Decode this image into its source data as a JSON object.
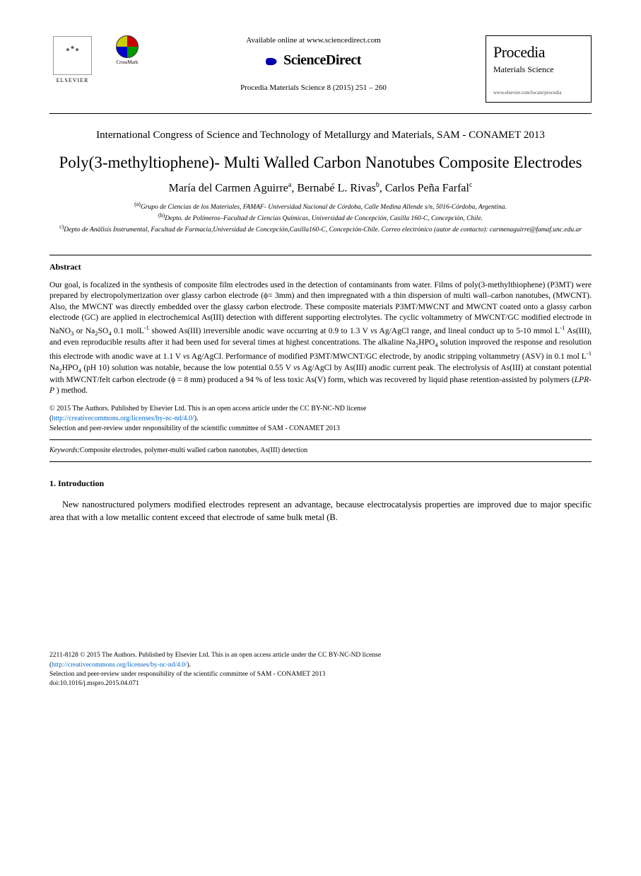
{
  "header": {
    "elsevier_label": "ELSEVIER",
    "crossmark_label": "CrossMark",
    "available_text": "Available online at www.sciencedirect.com",
    "sciencedirect": "ScienceDirect",
    "citation": "Procedia Materials Science 8 (2015) 251 – 260",
    "journal_name1": "Procedia",
    "journal_name2": "Materials Science",
    "journal_url": "www.elsevier.com/locate/procedia"
  },
  "congress": "International Congress of Science and Technology of Metallurgy and Materials, SAM - CONAMET 2013",
  "title": "Poly(3-methyltiophene)- Multi Walled Carbon Nanotubes Composite Electrodes",
  "authors_html": "María del Carmen Aguirre<sup>a</sup>, Bernabé L. Rivas<sup>b</sup>, Carlos Peña Farfal<sup>c</sup>",
  "affiliations": {
    "a": "Grupo de Ciencias de los Materiales, FAMAF- Universidad Nacional de Córdoba, Calle Medina Allende s/n, 5016-Córdoba, Argentina.",
    "b": "Depto. de Polímeros–Facultad de Ciencias Químicas, Universidad de Concepción, Casilla 160-C, Concepción, Chile.",
    "c": "Depto de Análisis Instrumental, Facultad de Farmacia,Universidad de Concepción,Casilla160-C, Concepción-Chile. Correo electrónico (autor de contacto): carmenaguirre@famaf.unc.edu.ar"
  },
  "abstract_heading": "Abstract",
  "abstract": "Our goal, is focalized in the synthesis of composite film electrodes used in the detection of contaminants from water. Films of poly(3-methylthiophene) (P3MT) were prepared by electropolymerization over glassy carbon electrode (ϕ= 3mm) and then impregnated with a thin dispersion of multi wall–carbon nanotubes, (MWCNT). Also, the MWCNT was directly embedded over the glassy carbon electrode. These composite materials P3MT/MWCNT and MWCNT coated onto a glassy carbon electrode (GC) are applied in electrochemical As(III) detection with different supporting electrolytes. The cyclic voltammetry of MWCNT/GC modified electrode in NaNO₃ or Na₂SO₄ 0.1 molL⁻¹ showed As(III) irreversible anodic wave occurring at 0.9 to 1.3 V vs Ag/AgCl range, and lineal conduct up to 5-10 mmol L⁻¹ As(III), and even reproducible results after it had been used for several times at highest concentrations. The alkaline Na₂HPO₄ solution improved the response and resolution this electrode with anodic wave at 1.1 V vs Ag/AgCl. Performance of modified P3MT/MWCNT/GC electrode, by anodic stripping voltammetry (ASV) in 0.1 mol L⁻¹ Na₂HPO₄ (pH 10) solution was notable, because the low potential 0.55 V vs Ag/AgCl by As(III) anodic current peak. The electrolysis of As(III) at constant potential with MWCNT/felt carbon electrode (ϕ = 8 mm) produced a 94 % of less toxic As(V) form, which was recovered by liquid phase retention-assisted by polymers (LPR-P ) method.",
  "copyright": {
    "line1": "© 2015 The Authors. Published by Elsevier Ltd. This is an open access article under the CC BY-NC-ND license",
    "license_url_text": "(http://creativecommons.org/licenses/by-nc-nd/4.0/).",
    "license_url": "http://creativecommons.org/licenses/by-nc-nd/4.0/",
    "peer_review": "Selection and peer-review under responsibility of the scientific committee of SAM - CONAMET 2013"
  },
  "keywords_label": "Keywords:",
  "keywords": "Composite electrodes, polymer-multi walled carbon nanotubes, As(III) detection",
  "intro_heading": "1. Introduction",
  "intro_text": "New nanostructured polymers modified electrodes represent an advantage, because electrocatalysis properties are improved due to major specific area that with a low metallic content exceed that electrode of same bulk metal (B.",
  "footer": {
    "issn_line": "2211-8128 © 2015 The Authors. Published by Elsevier Ltd. This is an open access article under the CC BY-NC-ND license",
    "license_url_text": "(http://creativecommons.org/licenses/by-nc-nd/4.0/).",
    "license_url": "http://creativecommons.org/licenses/by-nc-nd/4.0/",
    "peer_review": "Selection and peer-review under responsibility of the scientific committee of SAM - CONAMET 2013",
    "doi": "doi:10.1016/j.mspro.2015.04.071"
  },
  "colors": {
    "link": "#0066cc",
    "text": "#000000",
    "background": "#ffffff"
  }
}
